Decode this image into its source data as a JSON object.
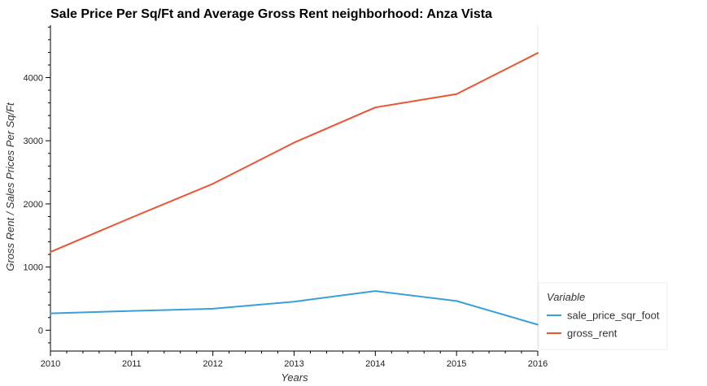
{
  "chart_data": {
    "type": "line",
    "title": "Sale Price Per Sq/Ft and Average Gross Rent  neighborhood: Anza Vista",
    "xlabel": "Years",
    "ylabel": "Gross Rent / Sales Prices Per Sq/Ft",
    "x": [
      2010,
      2011,
      2012,
      2013,
      2014,
      2015,
      2016
    ],
    "xlim": [
      2010,
      2016
    ],
    "ylim": [
      -330,
      4830
    ],
    "xticks": [
      "2010",
      "2011",
      "2012",
      "2013",
      "2014",
      "2015",
      "2016"
    ],
    "yticks": [
      "0",
      "1000",
      "2000",
      "3000",
      "4000"
    ],
    "legend_title": "Variable",
    "legend_position": "bottom-right",
    "grid": false,
    "series": [
      {
        "name": "sale_price_sqr_foot",
        "color": "#3a9fd8",
        "values": [
          267,
          305,
          340,
          452,
          620,
          463,
          88
        ]
      },
      {
        "name": "gross_rent",
        "color": "#ee5433",
        "values": [
          1239,
          1785,
          2319,
          2971,
          3528,
          3739,
          4390
        ]
      }
    ]
  }
}
